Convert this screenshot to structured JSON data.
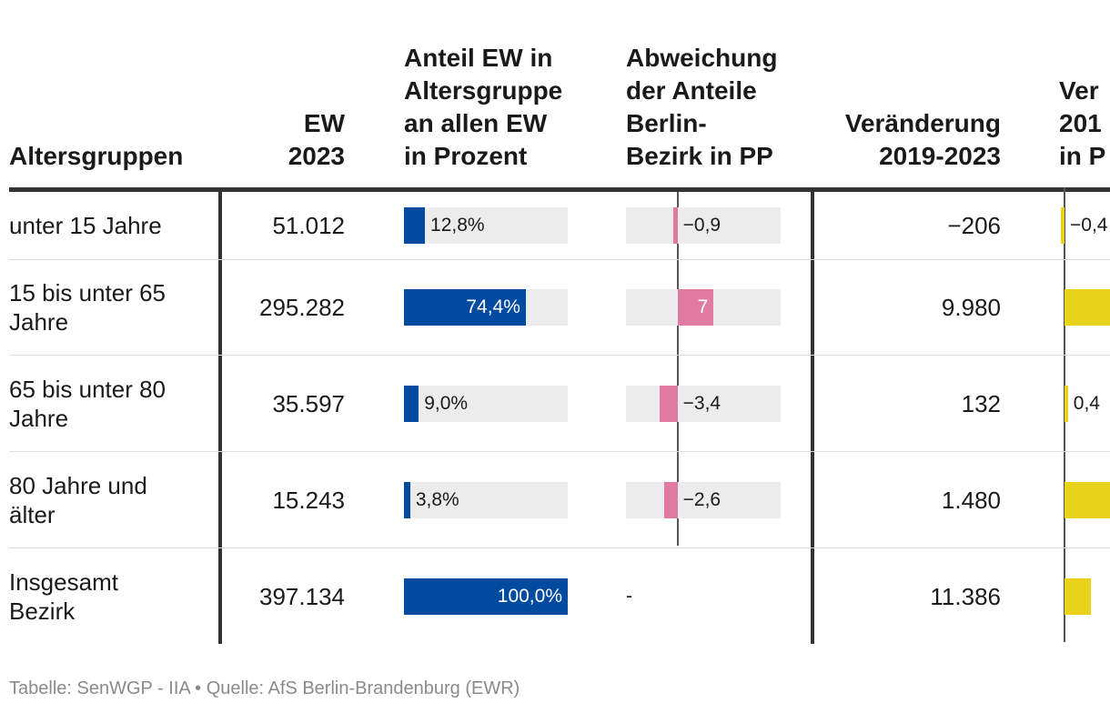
{
  "colors": {
    "share_bar": "#004a9f",
    "deviation_bar": "#e07aa0",
    "change_bar": "#ead11a",
    "bar_track": "#ececec",
    "rule": "#333333",
    "footer_text": "#8a8a8a"
  },
  "headers": {
    "age_groups": [
      "Altersgruppen"
    ],
    "ew": [
      "EW",
      "2023"
    ],
    "share": [
      "Anteil EW in",
      "Altersgruppe",
      "an allen EW",
      "in Prozent"
    ],
    "deviation": [
      "Abweichung",
      "der Anteile",
      "Berlin-",
      "Bezirk in PP"
    ],
    "change": [
      "Veränderung",
      "2019-2023"
    ],
    "change_pct": [
      "Ver",
      "201",
      "in P"
    ]
  },
  "rows": [
    {
      "group": [
        "unter 15 Jahre"
      ],
      "ew": "51.012",
      "share_label": "12,8%",
      "dev_label": "−0,9",
      "change": "−206",
      "change_pct_label": "−0,4"
    },
    {
      "group": [
        "15 bis unter 65",
        "Jahre"
      ],
      "ew": "295.282",
      "share_label": "74,4%",
      "dev_label": "7",
      "change": "9.980",
      "change_pct_label": ""
    },
    {
      "group": [
        "65 bis unter 80",
        "Jahre"
      ],
      "ew": "35.597",
      "share_label": "9,0%",
      "dev_label": "−3,4",
      "change": "132",
      "change_pct_label": "0,4"
    },
    {
      "group": [
        "80 Jahre und",
        "älter"
      ],
      "ew": "15.243",
      "share_label": "3,8%",
      "dev_label": "−2,6",
      "change": "1.480",
      "change_pct_label": ""
    },
    {
      "group": [
        "Insgesamt",
        "Bezirk"
      ],
      "ew": "397.134",
      "share_label": "100,0%",
      "dev_label": "-",
      "change": "11.386",
      "change_pct_label": ""
    }
  ],
  "chart_data": {
    "type": "table",
    "columns": [
      "Altersgruppen",
      "EW 2023",
      "Anteil EW in Altersgruppe an allen EW in Prozent",
      "Abweichung der Anteile Berlin-Bezirk in PP",
      "Veränderung 2019-2023",
      "Ver 201 in P"
    ],
    "share_percent": [
      12.8,
      74.4,
      9.0,
      3.8,
      100.0
    ],
    "share_range": [
      0,
      100
    ],
    "deviation_pp": [
      -0.9,
      7,
      -3.4,
      -2.6,
      null
    ],
    "deviation_range": [
      -10,
      20
    ],
    "change_pct_estimate": [
      -0.4,
      9,
      0.4,
      10,
      3
    ],
    "change_pct_range": [
      -1,
      20
    ]
  },
  "footer": "Tabelle: SenWGP - IIA • Quelle: AfS Berlin-Brandenburg (EWR)"
}
